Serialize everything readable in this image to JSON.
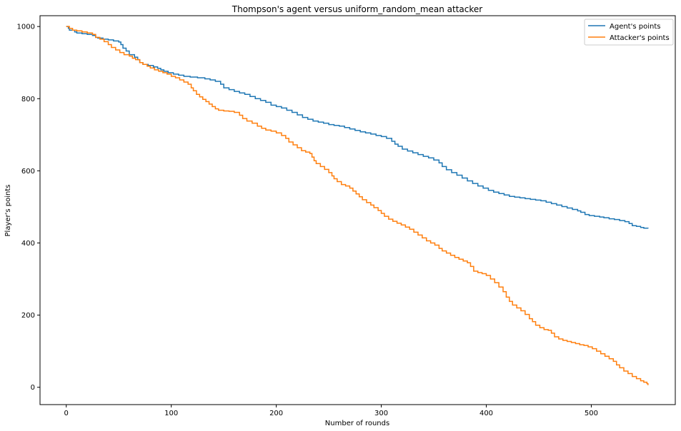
{
  "chart_data": {
    "type": "line",
    "title": "Thompson's agent versus uniform_random_mean attacker",
    "xlabel": "Number of rounds",
    "ylabel": "Player's points",
    "xlim": [
      -25,
      580
    ],
    "ylim": [
      -48,
      1030
    ],
    "xticks": [
      0,
      100,
      200,
      300,
      400,
      500
    ],
    "yticks": [
      0,
      200,
      400,
      600,
      800,
      1000
    ],
    "grid": false,
    "legend_position": "top-right",
    "colors": {
      "agent": "#1f77b4",
      "attacker": "#ff7f0e"
    },
    "series": [
      {
        "name": "Agent's points",
        "color": "#1f77b4",
        "points": [
          [
            0,
            1000
          ],
          [
            2,
            995
          ],
          [
            3,
            990
          ],
          [
            5,
            990
          ],
          [
            8,
            985
          ],
          [
            10,
            982
          ],
          [
            15,
            980
          ],
          [
            20,
            978
          ],
          [
            25,
            975
          ],
          [
            28,
            970
          ],
          [
            30,
            968
          ],
          [
            35,
            965
          ],
          [
            40,
            963
          ],
          [
            45,
            960
          ],
          [
            50,
            957
          ],
          [
            52,
            950
          ],
          [
            54,
            940
          ],
          [
            57,
            932
          ],
          [
            60,
            922
          ],
          [
            65,
            915
          ],
          [
            68,
            908
          ],
          [
            70,
            900
          ],
          [
            73,
            895
          ],
          [
            78,
            892
          ],
          [
            83,
            888
          ],
          [
            87,
            884
          ],
          [
            90,
            880
          ],
          [
            93,
            876
          ],
          [
            97,
            872
          ],
          [
            102,
            868
          ],
          [
            107,
            865
          ],
          [
            112,
            862
          ],
          [
            118,
            860
          ],
          [
            125,
            858
          ],
          [
            132,
            855
          ],
          [
            137,
            852
          ],
          [
            142,
            848
          ],
          [
            147,
            840
          ],
          [
            150,
            830
          ],
          [
            155,
            825
          ],
          [
            160,
            820
          ],
          [
            165,
            816
          ],
          [
            170,
            812
          ],
          [
            175,
            806
          ],
          [
            180,
            800
          ],
          [
            185,
            795
          ],
          [
            190,
            790
          ],
          [
            195,
            782
          ],
          [
            200,
            778
          ],
          [
            205,
            774
          ],
          [
            210,
            768
          ],
          [
            215,
            762
          ],
          [
            220,
            755
          ],
          [
            225,
            748
          ],
          [
            230,
            743
          ],
          [
            235,
            738
          ],
          [
            240,
            735
          ],
          [
            245,
            732
          ],
          [
            250,
            728
          ],
          [
            255,
            726
          ],
          [
            260,
            724
          ],
          [
            265,
            720
          ],
          [
            270,
            716
          ],
          [
            275,
            712
          ],
          [
            280,
            708
          ],
          [
            285,
            705
          ],
          [
            290,
            702
          ],
          [
            295,
            698
          ],
          [
            300,
            695
          ],
          [
            305,
            690
          ],
          [
            310,
            682
          ],
          [
            313,
            674
          ],
          [
            316,
            668
          ],
          [
            320,
            660
          ],
          [
            325,
            655
          ],
          [
            330,
            650
          ],
          [
            335,
            645
          ],
          [
            340,
            640
          ],
          [
            345,
            636
          ],
          [
            350,
            630
          ],
          [
            355,
            622
          ],
          [
            358,
            612
          ],
          [
            362,
            603
          ],
          [
            367,
            595
          ],
          [
            372,
            588
          ],
          [
            377,
            580
          ],
          [
            382,
            572
          ],
          [
            387,
            565
          ],
          [
            392,
            558
          ],
          [
            397,
            552
          ],
          [
            402,
            546
          ],
          [
            407,
            541
          ],
          [
            412,
            537
          ],
          [
            417,
            533
          ],
          [
            422,
            529
          ],
          [
            427,
            527
          ],
          [
            432,
            525
          ],
          [
            437,
            523
          ],
          [
            442,
            521
          ],
          [
            447,
            519
          ],
          [
            452,
            517
          ],
          [
            457,
            513
          ],
          [
            462,
            509
          ],
          [
            467,
            505
          ],
          [
            472,
            501
          ],
          [
            477,
            497
          ],
          [
            482,
            493
          ],
          [
            487,
            489
          ],
          [
            490,
            485
          ],
          [
            494,
            479
          ],
          [
            498,
            476
          ],
          [
            503,
            474
          ],
          [
            508,
            472
          ],
          [
            512,
            470
          ],
          [
            517,
            467
          ],
          [
            522,
            465
          ],
          [
            527,
            462
          ],
          [
            532,
            459
          ],
          [
            536,
            454
          ],
          [
            539,
            448
          ],
          [
            543,
            446
          ],
          [
            547,
            443
          ],
          [
            550,
            441
          ],
          [
            554,
            440
          ]
        ]
      },
      {
        "name": "Attacker's points",
        "color": "#ff7f0e",
        "points": [
          [
            0,
            1000
          ],
          [
            3,
            995
          ],
          [
            6,
            990
          ],
          [
            10,
            988
          ],
          [
            15,
            985
          ],
          [
            20,
            982
          ],
          [
            25,
            978
          ],
          [
            28,
            970
          ],
          [
            32,
            965
          ],
          [
            36,
            958
          ],
          [
            40,
            950
          ],
          [
            43,
            942
          ],
          [
            47,
            935
          ],
          [
            51,
            928
          ],
          [
            55,
            922
          ],
          [
            60,
            918
          ],
          [
            63,
            912
          ],
          [
            66,
            908
          ],
          [
            70,
            900
          ],
          [
            73,
            895
          ],
          [
            77,
            890
          ],
          [
            80,
            885
          ],
          [
            84,
            880
          ],
          [
            88,
            876
          ],
          [
            92,
            872
          ],
          [
            96,
            868
          ],
          [
            100,
            862
          ],
          [
            104,
            858
          ],
          [
            108,
            852
          ],
          [
            112,
            846
          ],
          [
            116,
            840
          ],
          [
            119,
            830
          ],
          [
            121,
            822
          ],
          [
            124,
            812
          ],
          [
            127,
            805
          ],
          [
            130,
            798
          ],
          [
            133,
            792
          ],
          [
            136,
            785
          ],
          [
            139,
            778
          ],
          [
            142,
            772
          ],
          [
            145,
            768
          ],
          [
            150,
            766
          ],
          [
            155,
            765
          ],
          [
            160,
            762
          ],
          [
            165,
            754
          ],
          [
            168,
            745
          ],
          [
            172,
            738
          ],
          [
            177,
            732
          ],
          [
            182,
            724
          ],
          [
            186,
            718
          ],
          [
            190,
            713
          ],
          [
            195,
            710
          ],
          [
            200,
            705
          ],
          [
            205,
            698
          ],
          [
            209,
            690
          ],
          [
            212,
            680
          ],
          [
            216,
            672
          ],
          [
            220,
            664
          ],
          [
            224,
            656
          ],
          [
            228,
            652
          ],
          [
            232,
            648
          ],
          [
            234,
            638
          ],
          [
            236,
            628
          ],
          [
            238,
            620
          ],
          [
            242,
            612
          ],
          [
            246,
            604
          ],
          [
            250,
            595
          ],
          [
            253,
            586
          ],
          [
            255,
            578
          ],
          [
            258,
            570
          ],
          [
            262,
            562
          ],
          [
            266,
            558
          ],
          [
            270,
            552
          ],
          [
            273,
            544
          ],
          [
            276,
            536
          ],
          [
            279,
            528
          ],
          [
            282,
            520
          ],
          [
            286,
            512
          ],
          [
            290,
            505
          ],
          [
            293,
            498
          ],
          [
            297,
            490
          ],
          [
            300,
            482
          ],
          [
            303,
            474
          ],
          [
            307,
            466
          ],
          [
            311,
            460
          ],
          [
            315,
            455
          ],
          [
            319,
            450
          ],
          [
            323,
            444
          ],
          [
            327,
            438
          ],
          [
            331,
            430
          ],
          [
            335,
            422
          ],
          [
            339,
            414
          ],
          [
            343,
            406
          ],
          [
            347,
            400
          ],
          [
            351,
            394
          ],
          [
            355,
            385
          ],
          [
            358,
            378
          ],
          [
            362,
            372
          ],
          [
            366,
            366
          ],
          [
            370,
            360
          ],
          [
            374,
            355
          ],
          [
            378,
            350
          ],
          [
            382,
            345
          ],
          [
            385,
            335
          ],
          [
            388,
            322
          ],
          [
            392,
            318
          ],
          [
            396,
            315
          ],
          [
            400,
            310
          ],
          [
            404,
            300
          ],
          [
            408,
            290
          ],
          [
            412,
            278
          ],
          [
            416,
            265
          ],
          [
            419,
            250
          ],
          [
            422,
            238
          ],
          [
            425,
            228
          ],
          [
            429,
            220
          ],
          [
            433,
            212
          ],
          [
            437,
            202
          ],
          [
            441,
            190
          ],
          [
            444,
            182
          ],
          [
            447,
            172
          ],
          [
            451,
            165
          ],
          [
            455,
            160
          ],
          [
            459,
            158
          ],
          [
            462,
            150
          ],
          [
            465,
            140
          ],
          [
            469,
            134
          ],
          [
            473,
            130
          ],
          [
            477,
            127
          ],
          [
            481,
            124
          ],
          [
            485,
            121
          ],
          [
            489,
            118
          ],
          [
            493,
            116
          ],
          [
            497,
            112
          ],
          [
            501,
            107
          ],
          [
            505,
            100
          ],
          [
            509,
            93
          ],
          [
            513,
            86
          ],
          [
            517,
            79
          ],
          [
            521,
            72
          ],
          [
            524,
            62
          ],
          [
            527,
            54
          ],
          [
            531,
            45
          ],
          [
            535,
            38
          ],
          [
            539,
            30
          ],
          [
            543,
            24
          ],
          [
            547,
            18
          ],
          [
            550,
            14
          ],
          [
            553,
            10
          ],
          [
            554,
            6
          ]
        ]
      }
    ]
  }
}
